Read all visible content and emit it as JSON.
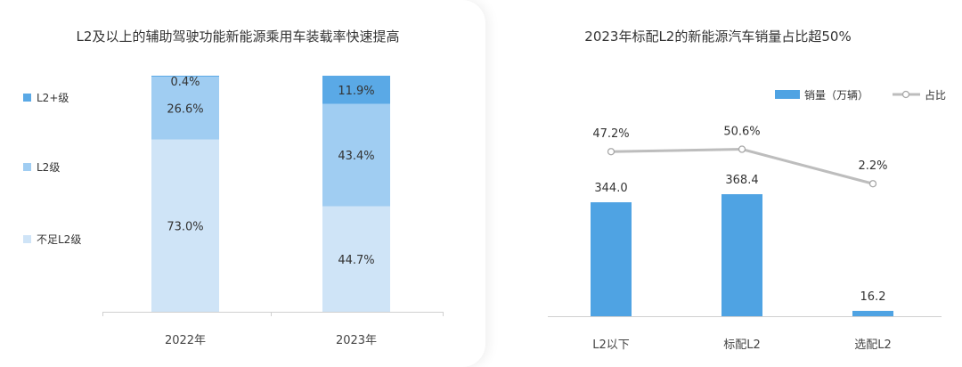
{
  "chart_data": [
    {
      "type": "bar",
      "stacked": true,
      "title": "L2及以上的辅助驾驶功能新能源乘用车装载率快速提高",
      "categories": [
        "2022年",
        "2023年"
      ],
      "series": [
        {
          "name": "不足L2级",
          "values": [
            73.0,
            44.7
          ],
          "labels": [
            "73.0%",
            "44.7%"
          ],
          "color": "#cfe4f7"
        },
        {
          "name": "L2级",
          "values": [
            26.6,
            43.4
          ],
          "labels": [
            "26.6%",
            "43.4%"
          ],
          "color": "#a0cdf2"
        },
        {
          "name": "L2+级",
          "values": [
            0.4,
            11.9
          ],
          "labels": [
            "0.4%",
            "11.9%"
          ],
          "color": "#5aa9e6"
        }
      ],
      "legend_order": [
        "L2+级",
        "L2级",
        "不足L2级"
      ],
      "legend_position": "left",
      "ylim": [
        0,
        100
      ]
    },
    {
      "type": "bar",
      "title": "2023年标配L2的新能源汽车销量占比超50%",
      "categories": [
        "L2以下",
        "标配L2",
        "选配L2"
      ],
      "series": [
        {
          "name": "销量（万辆）",
          "values": [
            344.0,
            368.4,
            16.2
          ],
          "labels": [
            "344.0",
            "368.4",
            "16.2"
          ],
          "color": "#4fa3e3"
        },
        {
          "name": "占比",
          "type": "line",
          "values": [
            47.2,
            50.6,
            2.2
          ],
          "labels": [
            "47.2%",
            "50.6%",
            "2.2%"
          ],
          "color": "#bdbdbd"
        }
      ],
      "legend_position": "top-right"
    }
  ]
}
